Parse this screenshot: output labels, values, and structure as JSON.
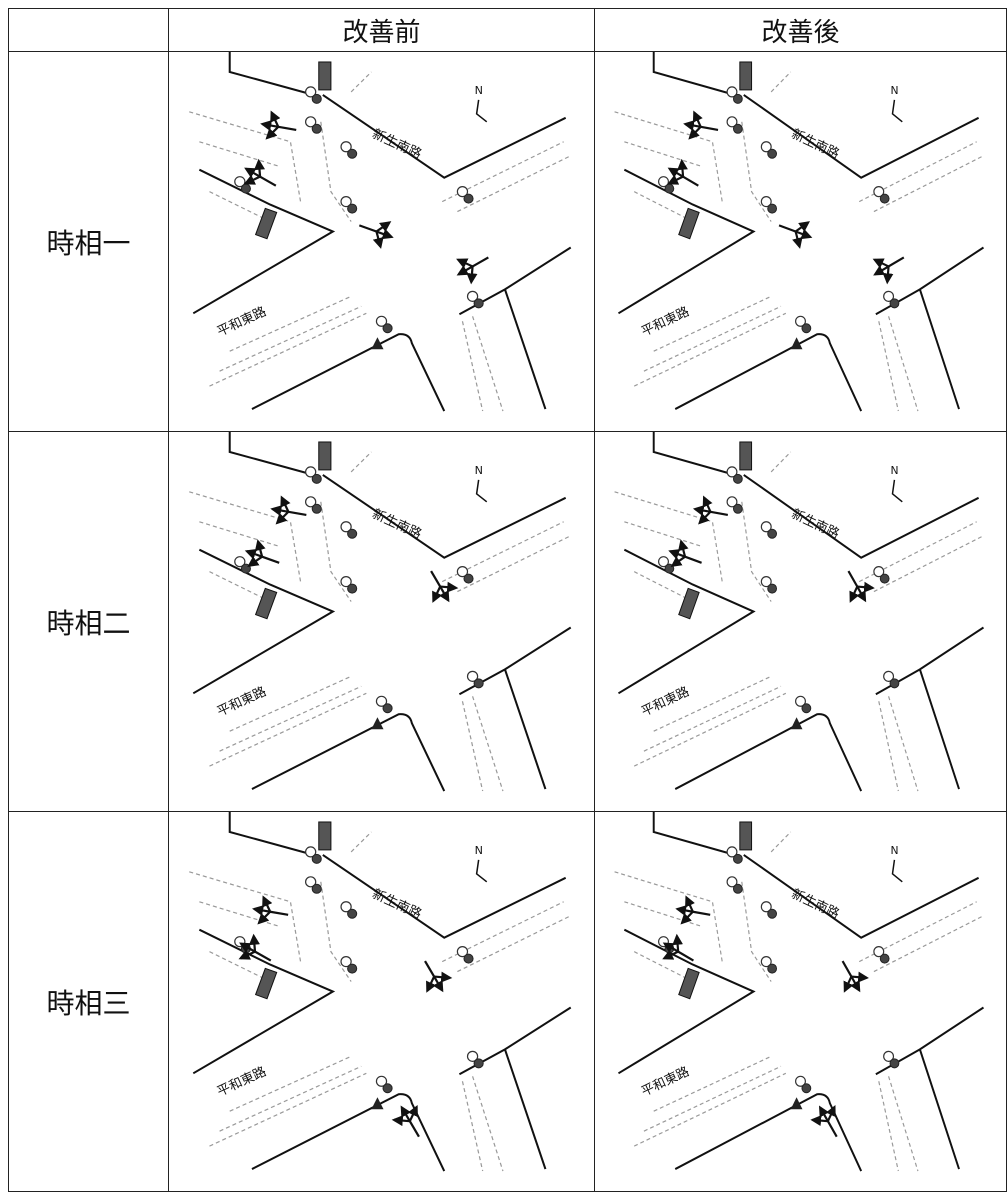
{
  "header": {
    "before": "改善前",
    "after": "改善後"
  },
  "rows": [
    {
      "label": "時相一"
    },
    {
      "label": "時相二"
    },
    {
      "label": "時相三"
    }
  ],
  "diagram_labels": {
    "north": "N",
    "road_east": "平和東路",
    "road_south": "新生南路"
  }
}
